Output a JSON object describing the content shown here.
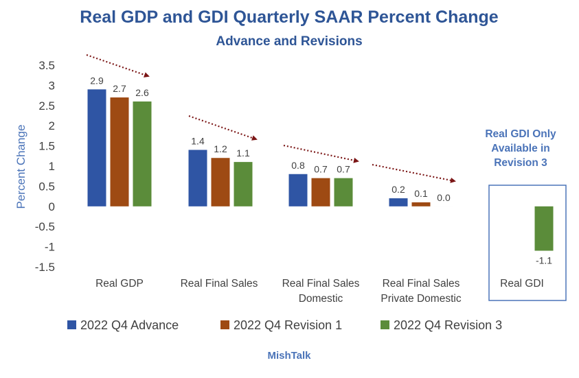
{
  "chart_data": {
    "type": "bar",
    "title": "Real GDP and GDI Quarterly SAAR Percent Change",
    "subtitle": "Advance and Revisions",
    "ylabel": "Percent Change",
    "xlabel": "",
    "ylim": [
      -1.5,
      3.5
    ],
    "yticks": [
      "3.5",
      "3",
      "2.5",
      "2",
      "1.5",
      "1",
      "0.5",
      "0",
      "-0.5",
      "-1",
      "-1.5"
    ],
    "categories": [
      [
        "Real GDP"
      ],
      [
        "Real Final Sales"
      ],
      [
        "Real Final Sales",
        "Domestic"
      ],
      [
        "Real Final Sales",
        "Private Domestic"
      ],
      [
        "Real GDI"
      ]
    ],
    "series": [
      {
        "name": "2022 Q4 Advance",
        "color": "#2f55a4",
        "values": [
          2.9,
          1.4,
          0.8,
          0.2,
          null
        ],
        "labels": [
          "2.9",
          "1.4",
          "0.8",
          "0.2",
          ""
        ]
      },
      {
        "name": "2022 Q4 Revision 1",
        "color": "#9e4a13",
        "values": [
          2.7,
          1.2,
          0.7,
          0.1,
          null
        ],
        "labels": [
          "2.7",
          "1.2",
          "0.7",
          "0.1",
          ""
        ]
      },
      {
        "name": "2022 Q4 Revision 3",
        "color": "#5b8c3a",
        "values": [
          2.6,
          1.1,
          0.7,
          0.0,
          -1.1
        ],
        "labels": [
          "2.6",
          "1.1",
          "0.7",
          "0.0",
          "-1.1"
        ]
      }
    ],
    "grid": false,
    "legend_position": "bottom",
    "trend_arrow_color": "#7b1616",
    "annotation": [
      "Real GDI Only",
      "Available in",
      "Revision 3"
    ],
    "footer": "MishTalk"
  }
}
